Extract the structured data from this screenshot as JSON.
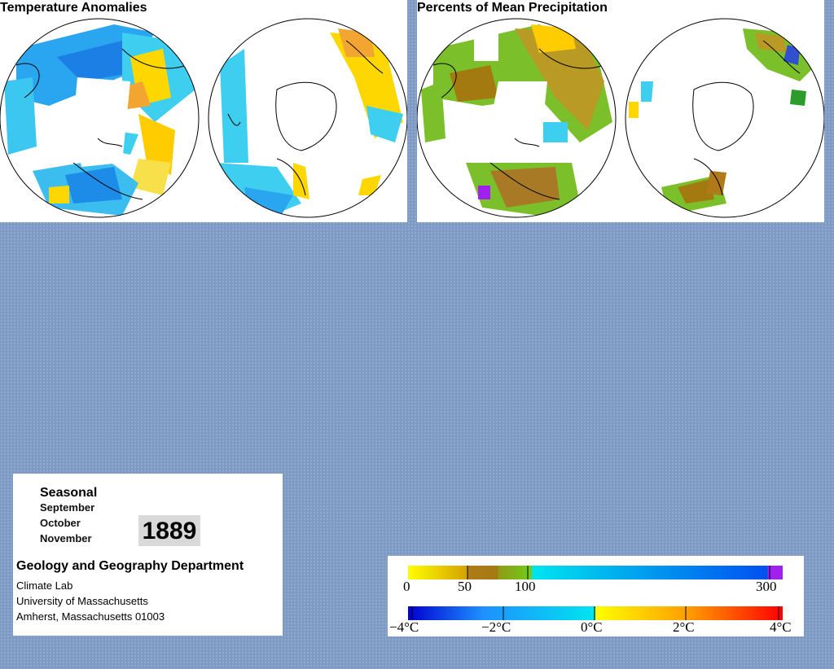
{
  "maps": {
    "temperature": {
      "title": "Temperature Anomalies"
    },
    "precipitation": {
      "title": "Percents of Mean Precipitation"
    }
  },
  "info": {
    "season": "Seasonal",
    "months": [
      "September",
      "October",
      "November"
    ],
    "year": "1889",
    "department": "Geology and Geography Department",
    "lines": [
      "Climate Lab",
      "University of Massachusetts",
      "Amherst, Massachusetts 01003"
    ]
  },
  "legend": {
    "precipitation": {
      "labels": [
        "0",
        "50",
        "100",
        "300"
      ],
      "colors": [
        "#ffff00",
        "#b07a1a",
        "#a37a10",
        "#6fce1a",
        "#00e5ee",
        "#0050f0",
        "#a020f0"
      ]
    },
    "temperature": {
      "labels": [
        "−4°C",
        "−2°C",
        "0°C",
        "2°C",
        "4°C"
      ],
      "colors": [
        "#0000d0",
        "#1e90ff",
        "#00e5ee",
        "#ffff00",
        "#ff8c00",
        "#ff0000"
      ]
    }
  }
}
